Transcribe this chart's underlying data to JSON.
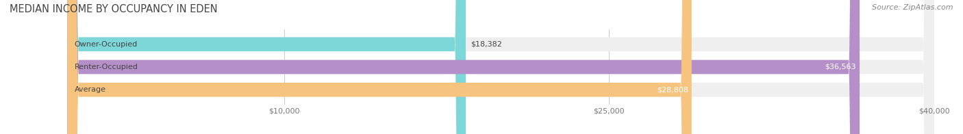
{
  "title": "MEDIAN INCOME BY OCCUPANCY IN EDEN",
  "source": "Source: ZipAtlas.com",
  "categories": [
    "Owner-Occupied",
    "Renter-Occupied",
    "Average"
  ],
  "values": [
    18382,
    36563,
    28808
  ],
  "bar_colors": [
    "#7dd6d8",
    "#b590c8",
    "#f6c47e"
  ],
  "track_color": "#efefef",
  "value_labels": [
    "$18,382",
    "$36,563",
    "$28,808"
  ],
  "value_label_inside": [
    false,
    true,
    true
  ],
  "xlim_min": 0,
  "xlim_max": 40000,
  "xticks": [
    10000,
    25000,
    40000
  ],
  "xtick_labels": [
    "$10,000",
    "$25,000",
    "$40,000"
  ],
  "title_fontsize": 10.5,
  "source_fontsize": 8,
  "bar_label_fontsize": 8,
  "value_label_fontsize": 8,
  "background_color": "#ffffff",
  "bar_height": 0.62,
  "grid_color": "#cccccc",
  "text_dark": "#444444",
  "text_light": "#ffffff",
  "source_color": "#888888"
}
